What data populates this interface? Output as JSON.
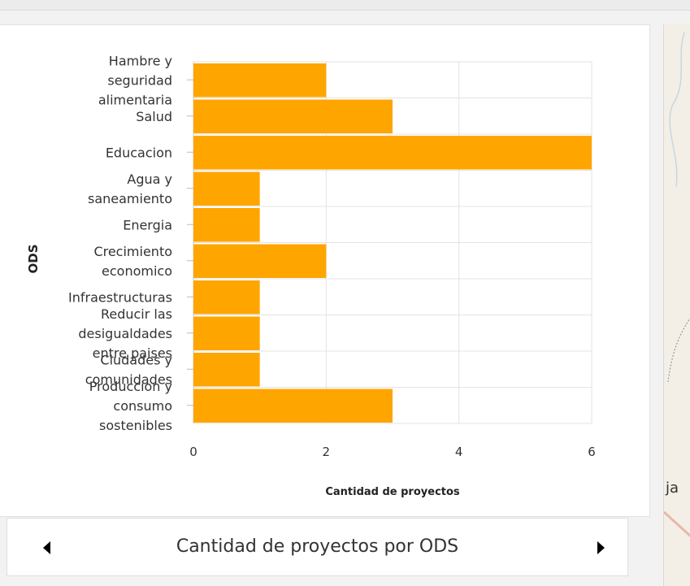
{
  "chart_data": {
    "type": "bar",
    "orientation": "horizontal",
    "title": "Cantidad de proyectos por ODS",
    "xlabel": "Cantidad de proyectos",
    "ylabel": "ODS",
    "categories": [
      "Hambre y seguridad alimentaria",
      "Salud",
      "Educacion",
      "Agua y saneamiento",
      "Energia",
      "Crecimiento economico",
      "Infraestructuras",
      "Reducir las desigualdades entre paises",
      "Ciudades y comunidades",
      "Produccion y consumo sostenibles"
    ],
    "category_label_lines": [
      [
        "Hambre y",
        "seguridad",
        "alimentaria"
      ],
      [
        "Salud"
      ],
      [
        "Educacion"
      ],
      [
        "Agua y",
        "saneamiento"
      ],
      [
        "Energia"
      ],
      [
        "Crecimiento",
        "economico"
      ],
      [
        "Infraestructuras"
      ],
      [
        "Reducir las",
        "desigualdades",
        "entre paises"
      ],
      [
        "Ciudades y",
        "comunidades"
      ],
      [
        "Produccion y",
        "consumo",
        "sostenibles"
      ]
    ],
    "values": [
      2,
      3,
      6,
      1,
      1,
      2,
      1,
      1,
      1,
      3
    ],
    "xlim": [
      0,
      6
    ],
    "xticks": [
      0,
      2,
      4,
      6
    ],
    "grid": true,
    "bar_color": "#FFA500"
  },
  "nav": {
    "title": "Cantidad de proyectos por ODS"
  },
  "map": {
    "label": "ja"
  }
}
